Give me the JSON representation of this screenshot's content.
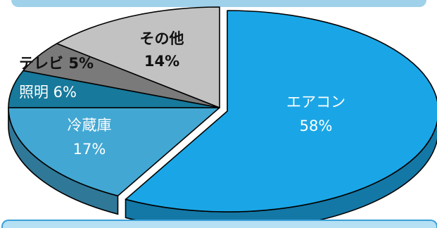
{
  "chart_data": {
    "type": "pie",
    "title": "",
    "slices": [
      {
        "category": "エアコン",
        "percent_label": "58%",
        "value": 58,
        "color": "#1aa6e6"
      },
      {
        "category": "冷蔵庫",
        "percent_label": "17%",
        "value": 17,
        "color": "#42a7d3"
      },
      {
        "category": "照明",
        "percent_label": "6%",
        "value": 6,
        "color": "#17799b"
      },
      {
        "category": "テレビ",
        "percent_label": "5%",
        "value": 5,
        "color": "#7a7a7a"
      },
      {
        "category": "その他",
        "percent_label": "14%",
        "value": 14,
        "color": "#c2c2c2"
      }
    ],
    "exploded_slice": "エアコン",
    "style": "3d"
  }
}
